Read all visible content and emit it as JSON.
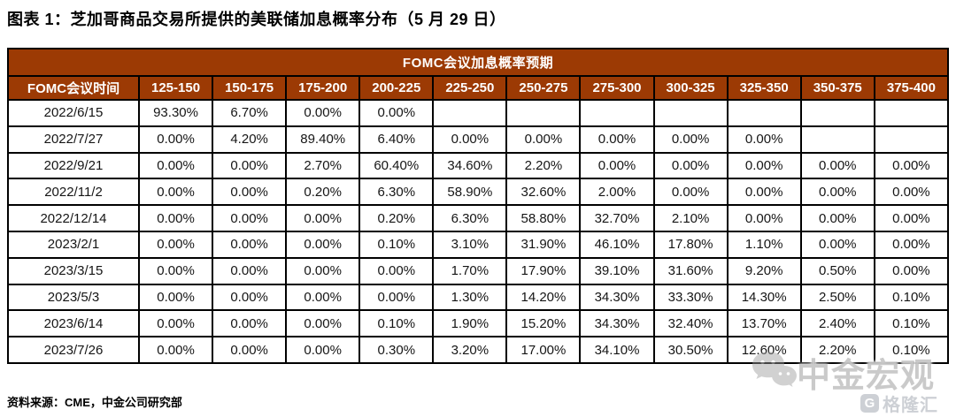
{
  "figure_title": "图表 1：芝加哥商品交易所提供的美联储加息概率分布（5 月 29 日）",
  "chart_data": {
    "type": "table",
    "title": "FOMC会议加息概率预期",
    "row_header_label": "FOMC会议时间",
    "columns": [
      "125-150",
      "150-175",
      "175-200",
      "200-225",
      "225-250",
      "250-275",
      "275-300",
      "300-325",
      "325-350",
      "350-375",
      "375-400"
    ],
    "rows": [
      {
        "date": "2022/6/15",
        "values": [
          "93.30%",
          "6.70%",
          "0.00%",
          "0.00%",
          "",
          "",
          "",
          "",
          "",
          "",
          ""
        ],
        "highlight_index": 0
      },
      {
        "date": "2022/7/27",
        "values": [
          "0.00%",
          "4.20%",
          "89.40%",
          "6.40%",
          "0.00%",
          "0.00%",
          "0.00%",
          "0.00%",
          "0.00%",
          "",
          ""
        ],
        "highlight_index": 2
      },
      {
        "date": "2022/9/21",
        "values": [
          "0.00%",
          "0.00%",
          "2.70%",
          "60.40%",
          "34.60%",
          "2.20%",
          "0.00%",
          "0.00%",
          "0.00%",
          "0.00%",
          "0.00%"
        ],
        "highlight_index": 3
      },
      {
        "date": "2022/11/2",
        "values": [
          "0.00%",
          "0.00%",
          "0.20%",
          "6.30%",
          "58.90%",
          "32.60%",
          "2.00%",
          "0.00%",
          "0.00%",
          "0.00%",
          "0.00%"
        ],
        "highlight_index": 4
      },
      {
        "date": "2022/12/14",
        "values": [
          "0.00%",
          "0.00%",
          "0.00%",
          "0.20%",
          "6.30%",
          "58.80%",
          "32.70%",
          "2.10%",
          "0.00%",
          "0.00%",
          "0.00%"
        ],
        "highlight_index": 5
      },
      {
        "date": "2023/2/1",
        "values": [
          "0.00%",
          "0.00%",
          "0.00%",
          "0.10%",
          "3.10%",
          "31.90%",
          "46.10%",
          "17.80%",
          "1.10%",
          "0.00%",
          "0.00%"
        ],
        "highlight_index": 6
      },
      {
        "date": "2023/3/15",
        "values": [
          "0.00%",
          "0.00%",
          "0.00%",
          "0.00%",
          "1.70%",
          "17.90%",
          "39.10%",
          "31.60%",
          "9.20%",
          "0.50%",
          "0.00%"
        ],
        "highlight_index": 6
      },
      {
        "date": "2023/5/3",
        "values": [
          "0.00%",
          "0.00%",
          "0.00%",
          "0.00%",
          "1.30%",
          "14.20%",
          "34.30%",
          "33.30%",
          "14.30%",
          "2.50%",
          "0.10%"
        ],
        "highlight_index": 6
      },
      {
        "date": "2023/6/14",
        "values": [
          "0.00%",
          "0.00%",
          "0.00%",
          "0.10%",
          "1.90%",
          "15.20%",
          "34.30%",
          "32.40%",
          "13.70%",
          "2.40%",
          "0.10%"
        ],
        "highlight_index": 6
      },
      {
        "date": "2023/7/26",
        "values": [
          "0.00%",
          "0.00%",
          "0.00%",
          "0.30%",
          "3.20%",
          "17.00%",
          "34.10%",
          "30.50%",
          "12.60%",
          "2.20%",
          "0.10%"
        ],
        "highlight_index": 6
      }
    ]
  },
  "colors": {
    "header_bg": "#9C3A04",
    "header_text": "#FFFFFF",
    "highlight_bg": "#F4B183",
    "pre_highlight_bg": "#F1F1F1",
    "border": "#000000"
  },
  "footer": {
    "source": "资料来源：CME，中金公司研究部"
  },
  "watermark": {
    "text": "中金宏观",
    "icon": "wechat-bubbles-icon"
  },
  "logo": {
    "text": "格隆汇",
    "icon": "gelonghui-g-icon"
  }
}
